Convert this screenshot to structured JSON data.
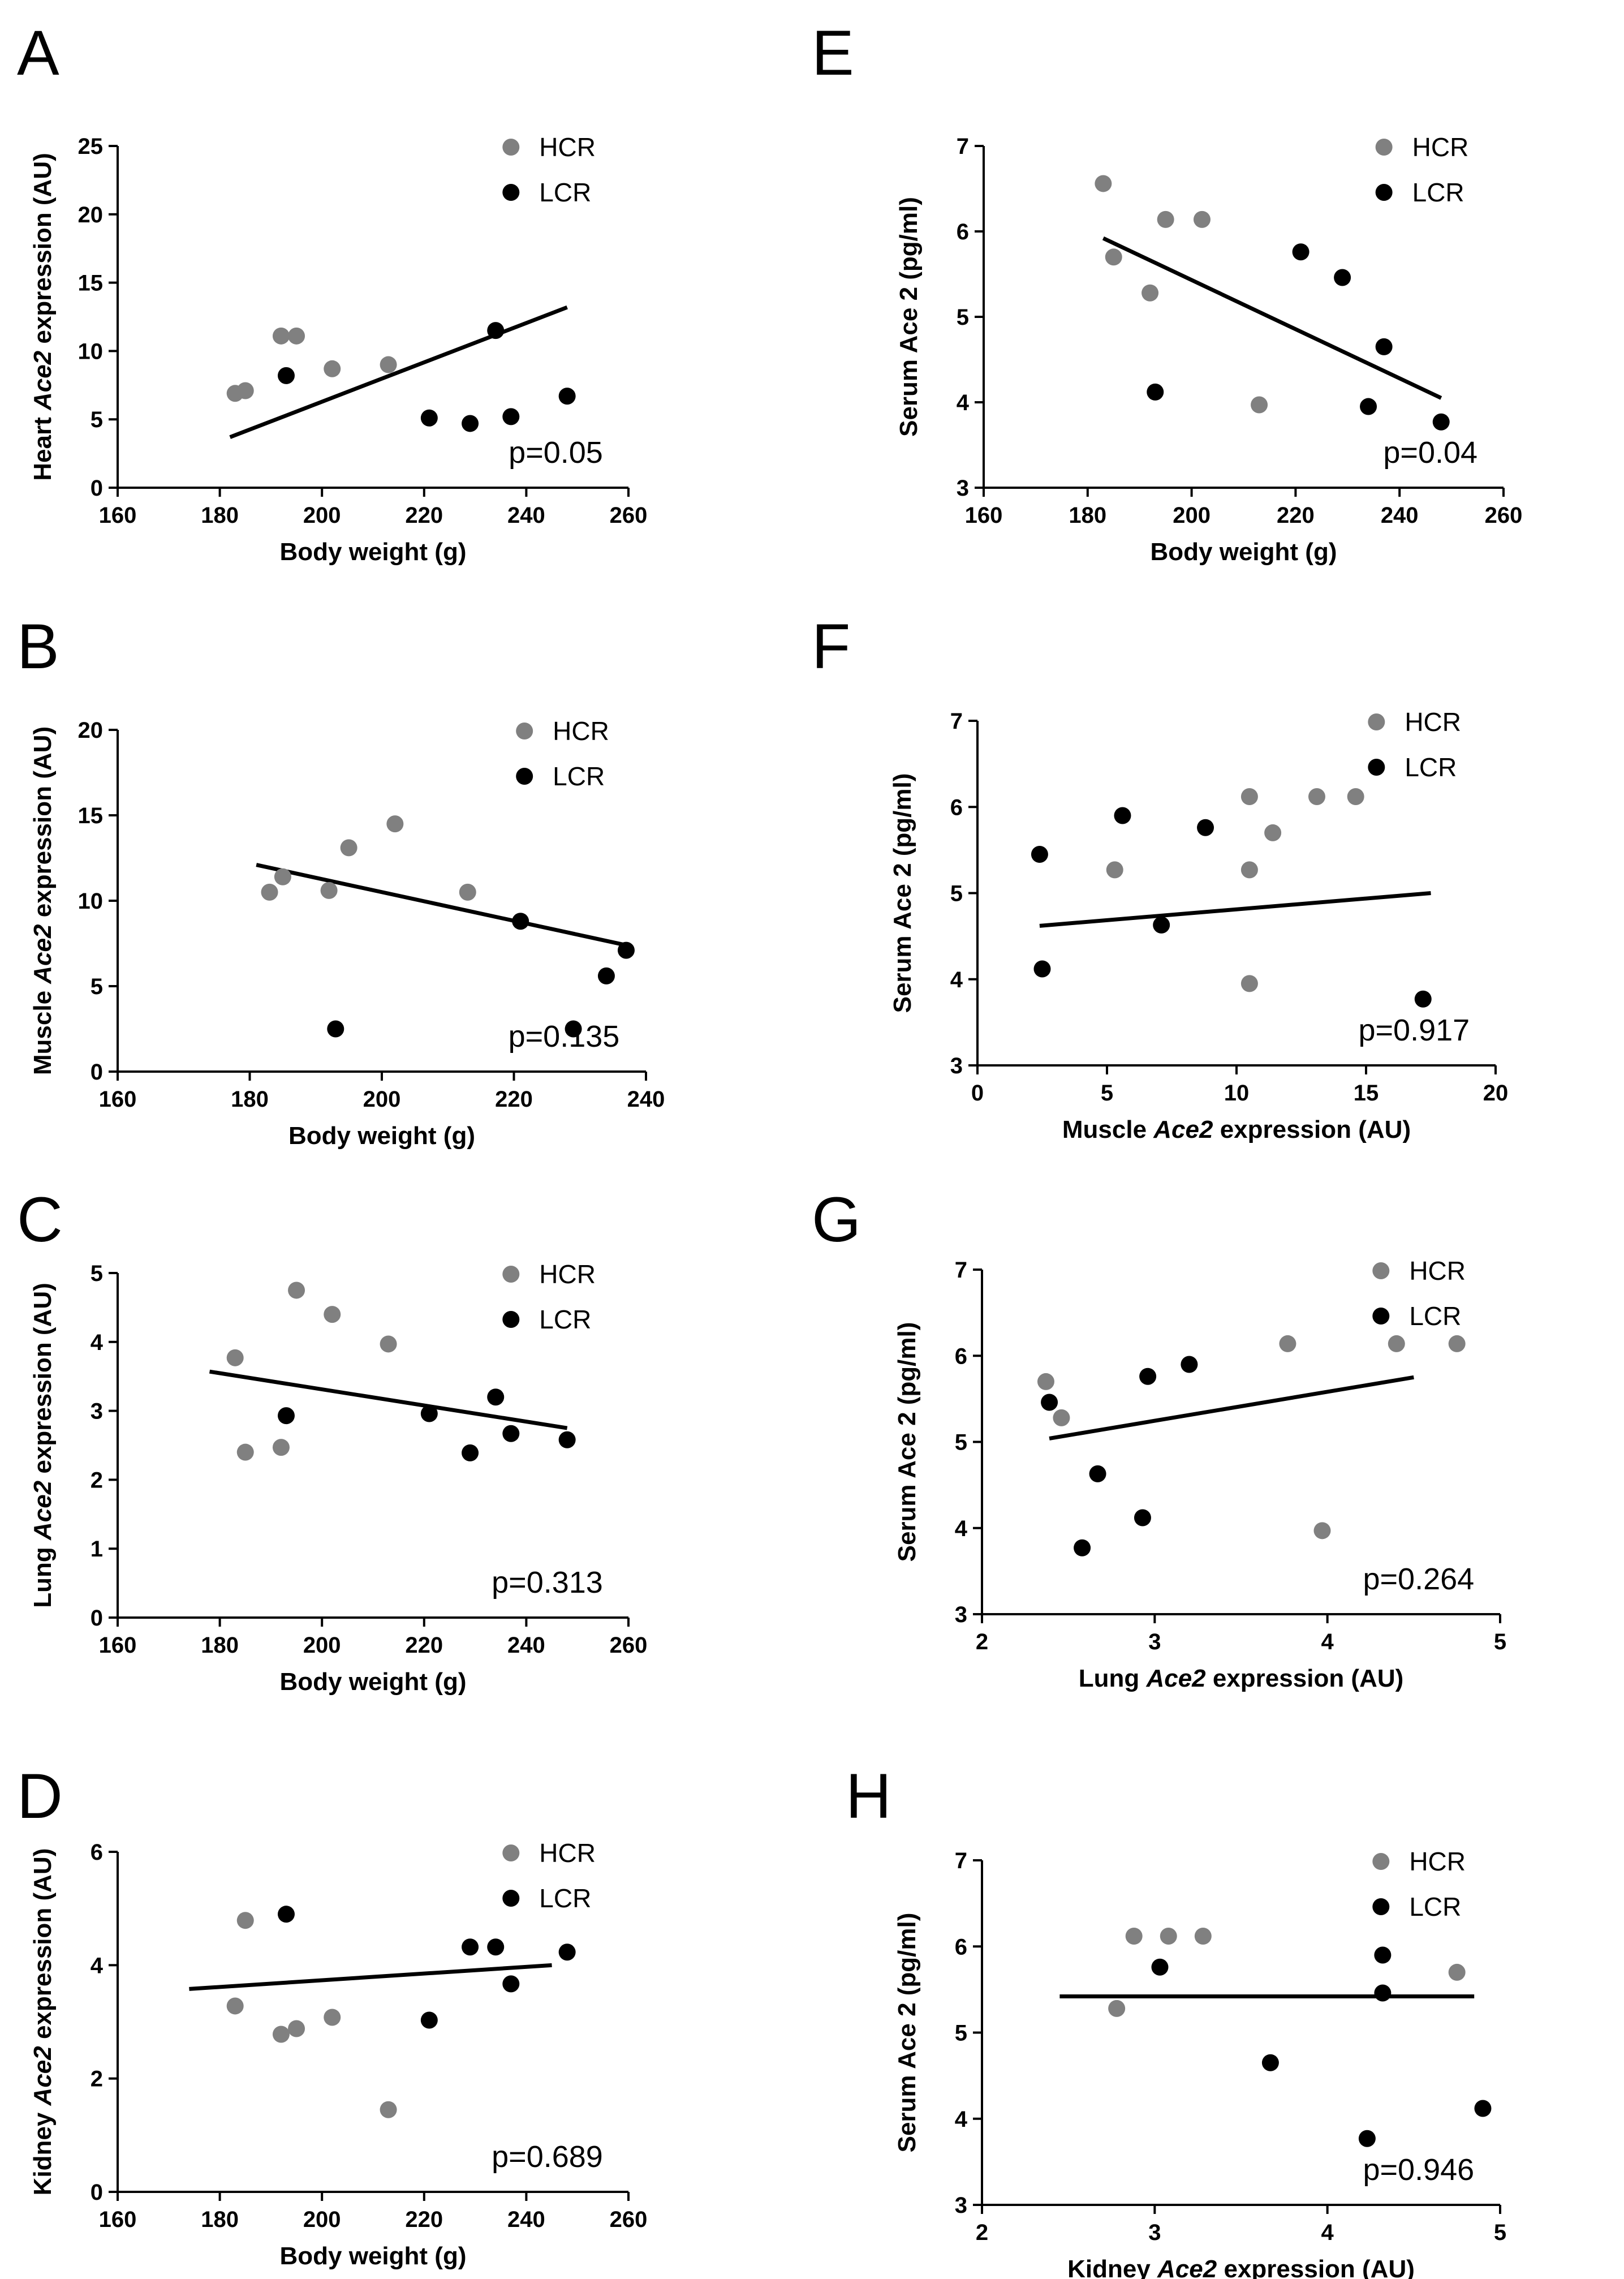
{
  "figure": {
    "colors": {
      "HCR": "#808080",
      "LCR": "#000000",
      "axis": "#000000",
      "line": "#000000"
    }
  },
  "chart_data": [
    {
      "type": "scatter",
      "panel": "A",
      "xlabel": "Body weight (g)",
      "ylabel": [
        "Heart ",
        "Ace2",
        " expression (AU)"
      ],
      "xlim": [
        160,
        260
      ],
      "ylim": [
        0,
        25
      ],
      "xticks": [
        160,
        180,
        200,
        220,
        240,
        260
      ],
      "yticks": [
        0,
        5,
        10,
        15,
        20,
        25
      ],
      "legend": [
        "HCR",
        "LCR"
      ],
      "pvalue": "p=0.05",
      "series": [
        {
          "name": "HCR",
          "points": [
            [
              183,
              6.9
            ],
            [
              185,
              7.1
            ],
            [
              192,
              11.1
            ],
            [
              195,
              11.1
            ],
            [
              202,
              8.7
            ],
            [
              213,
              9.0
            ]
          ]
        },
        {
          "name": "LCR",
          "points": [
            [
              193,
              8.2
            ],
            [
              221,
              5.1
            ],
            [
              229,
              4.7
            ],
            [
              234,
              11.5
            ],
            [
              237,
              5.2
            ],
            [
              248,
              6.7
            ]
          ]
        }
      ],
      "fit": [
        [
          182,
          3.7
        ],
        [
          248,
          13.2
        ]
      ]
    },
    {
      "type": "scatter",
      "panel": "B",
      "xlabel": "Body weight (g)",
      "ylabel": [
        "Muscle ",
        "Ace2",
        " expression (AU)"
      ],
      "xlim": [
        160,
        240
      ],
      "ylim": [
        0,
        20
      ],
      "xticks": [
        160,
        180,
        200,
        220,
        240
      ],
      "yticks": [
        0,
        5,
        10,
        15,
        20
      ],
      "legend": [
        "HCR",
        "LCR"
      ],
      "pvalue": "p=0.135",
      "series": [
        {
          "name": "HCR",
          "points": [
            [
              183,
              10.5
            ],
            [
              185,
              11.4
            ],
            [
              192,
              10.6
            ],
            [
              195,
              13.1
            ],
            [
              202,
              14.5
            ],
            [
              213,
              10.5
            ]
          ]
        },
        {
          "name": "LCR",
          "points": [
            [
              193,
              2.5
            ],
            [
              221,
              8.8
            ],
            [
              229,
              2.5
            ],
            [
              234,
              5.6
            ],
            [
              237,
              7.1
            ]
          ]
        }
      ],
      "fit": [
        [
          181,
          12.1
        ],
        [
          237,
          7.4
        ]
      ]
    },
    {
      "type": "scatter",
      "panel": "C",
      "xlabel": "Body weight (g)",
      "ylabel": [
        "Lung ",
        "Ace2",
        " expression (AU)"
      ],
      "xlim": [
        160,
        260
      ],
      "ylim": [
        0,
        5
      ],
      "xticks": [
        160,
        180,
        200,
        220,
        240,
        260
      ],
      "yticks": [
        0,
        1,
        2,
        3,
        4,
        5
      ],
      "legend": [
        "HCR",
        "LCR"
      ],
      "pvalue": "p=0.313",
      "series": [
        {
          "name": "HCR",
          "points": [
            [
              183,
              3.77
            ],
            [
              185,
              2.4
            ],
            [
              192,
              2.47
            ],
            [
              195,
              4.75
            ],
            [
              202,
              4.4
            ],
            [
              213,
              3.97
            ]
          ]
        },
        {
          "name": "LCR",
          "points": [
            [
              193,
              2.93
            ],
            [
              221,
              2.96
            ],
            [
              229,
              2.39
            ],
            [
              234,
              3.2
            ],
            [
              237,
              2.67
            ],
            [
              248,
              2.58
            ]
          ]
        }
      ],
      "fit": [
        [
          178,
          3.57
        ],
        [
          248,
          2.75
        ]
      ]
    },
    {
      "type": "scatter",
      "panel": "D",
      "xlabel": "Body weight (g)",
      "ylabel": [
        "Kidney ",
        "Ace2",
        " expression (AU)"
      ],
      "xlim": [
        160,
        260
      ],
      "ylim": [
        0,
        6
      ],
      "xticks": [
        160,
        180,
        200,
        220,
        240,
        260
      ],
      "yticks": [
        0,
        2,
        4,
        6
      ],
      "legend": [
        "HCR",
        "LCR"
      ],
      "pvalue": "p=0.689",
      "series": [
        {
          "name": "HCR",
          "points": [
            [
              183,
              3.28
            ],
            [
              185,
              4.79
            ],
            [
              192,
              2.78
            ],
            [
              195,
              2.88
            ],
            [
              202,
              3.08
            ],
            [
              213,
              1.45
            ]
          ]
        },
        {
          "name": "LCR",
          "points": [
            [
              193,
              4.9
            ],
            [
              221,
              3.03
            ],
            [
              229,
              4.32
            ],
            [
              234,
              4.32
            ],
            [
              237,
              3.67
            ],
            [
              248,
              4.23
            ]
          ]
        }
      ],
      "fit": [
        [
          174,
          3.58
        ],
        [
          245,
          4.0
        ]
      ]
    },
    {
      "type": "scatter",
      "panel": "E",
      "xlabel": "Body weight (g)",
      "ylabel": [
        "Serum Ace 2 (pg/ml)"
      ],
      "xlim": [
        160,
        260
      ],
      "ylim": [
        3,
        7
      ],
      "xticks": [
        160,
        180,
        200,
        220,
        240,
        260
      ],
      "yticks": [
        3,
        4,
        5,
        6,
        7
      ],
      "legend": [
        "HCR",
        "LCR"
      ],
      "pvalue": "p=0.04",
      "series": [
        {
          "name": "HCR",
          "points": [
            [
              183,
              6.56
            ],
            [
              185,
              5.7
            ],
            [
              192,
              5.28
            ],
            [
              195,
              6.14
            ],
            [
              202,
              6.14
            ],
            [
              213,
              3.97
            ]
          ]
        },
        {
          "name": "LCR",
          "points": [
            [
              193,
              4.12
            ],
            [
              221,
              5.76
            ],
            [
              229,
              5.46
            ],
            [
              234,
              3.95
            ],
            [
              237,
              4.65
            ],
            [
              248,
              3.77
            ]
          ]
        }
      ],
      "fit": [
        [
          183,
          5.92
        ],
        [
          248,
          4.05
        ]
      ]
    },
    {
      "type": "scatter",
      "panel": "F",
      "xlabel": [
        "Muscle ",
        "Ace2",
        " expression (AU)"
      ],
      "ylabel": [
        "Serum Ace 2 (pg/ml)"
      ],
      "xlim": [
        0,
        20
      ],
      "ylim": [
        3,
        7
      ],
      "xticks": [
        0,
        5,
        10,
        15,
        20
      ],
      "yticks": [
        3,
        4,
        5,
        6,
        7
      ],
      "legend": [
        "HCR",
        "LCR"
      ],
      "pvalue": "p=0.917",
      "series": [
        {
          "name": "HCR",
          "points": [
            [
              5.3,
              5.27
            ],
            [
              10.5,
              6.12
            ],
            [
              10.5,
              5.27
            ],
            [
              10.5,
              3.95
            ],
            [
              11.4,
              5.7
            ],
            [
              13.1,
              6.12
            ],
            [
              14.6,
              6.12
            ]
          ]
        },
        {
          "name": "LCR",
          "points": [
            [
              2.4,
              5.45
            ],
            [
              2.5,
              4.12
            ],
            [
              5.6,
              5.9
            ],
            [
              7.1,
              4.63
            ],
            [
              8.8,
              5.76
            ],
            [
              17.2,
              3.77
            ]
          ]
        }
      ],
      "fit": [
        [
          2.4,
          4.62
        ],
        [
          17.5,
          5.0
        ]
      ]
    },
    {
      "type": "scatter",
      "panel": "G",
      "xlabel": [
        "Lung ",
        "Ace2",
        " expression (AU)"
      ],
      "ylabel": [
        "Serum Ace 2 (pg/ml)"
      ],
      "xlim": [
        2,
        5
      ],
      "ylim": [
        3,
        7
      ],
      "xticks": [
        2,
        3,
        4,
        5
      ],
      "yticks": [
        3,
        4,
        5,
        6,
        7
      ],
      "legend": [
        "HCR",
        "LCR"
      ],
      "pvalue": "p=0.264",
      "series": [
        {
          "name": "HCR",
          "points": [
            [
              2.37,
              5.7
            ],
            [
              2.46,
              5.28
            ],
            [
              3.77,
              6.14
            ],
            [
              3.97,
              3.97
            ],
            [
              4.4,
              6.14
            ],
            [
              4.75,
              6.14
            ]
          ]
        },
        {
          "name": "LCR",
          "points": [
            [
              2.39,
              5.46
            ],
            [
              2.58,
              3.77
            ],
            [
              2.67,
              4.63
            ],
            [
              2.93,
              4.12
            ],
            [
              2.96,
              5.76
            ],
            [
              3.2,
              5.9
            ]
          ]
        }
      ],
      "fit": [
        [
          2.39,
          5.04
        ],
        [
          4.5,
          5.75
        ]
      ]
    },
    {
      "type": "scatter",
      "panel": "H",
      "xlabel": [
        "Kidney ",
        "Ace2",
        " expression (AU)"
      ],
      "ylabel": [
        "Serum Ace 2 (pg/ml)"
      ],
      "xlim": [
        2,
        5
      ],
      "ylim": [
        3,
        7
      ],
      "xticks": [
        2,
        3,
        4,
        5
      ],
      "yticks": [
        3,
        4,
        5,
        6,
        7
      ],
      "legend": [
        "HCR",
        "LCR"
      ],
      "pvalue": "p=0.946",
      "series": [
        {
          "name": "HCR",
          "points": [
            [
              2.78,
              5.28
            ],
            [
              2.88,
              6.12
            ],
            [
              3.08,
              6.12
            ],
            [
              3.28,
              6.12
            ],
            [
              4.75,
              5.7
            ]
          ]
        },
        {
          "name": "LCR",
          "points": [
            [
              3.03,
              5.76
            ],
            [
              3.67,
              4.65
            ],
            [
              4.23,
              3.77
            ],
            [
              4.32,
              5.9
            ],
            [
              4.32,
              5.46
            ],
            [
              4.9,
              4.12
            ]
          ]
        }
      ],
      "fit": [
        [
          2.45,
          5.42
        ],
        [
          4.85,
          5.42
        ]
      ]
    }
  ]
}
